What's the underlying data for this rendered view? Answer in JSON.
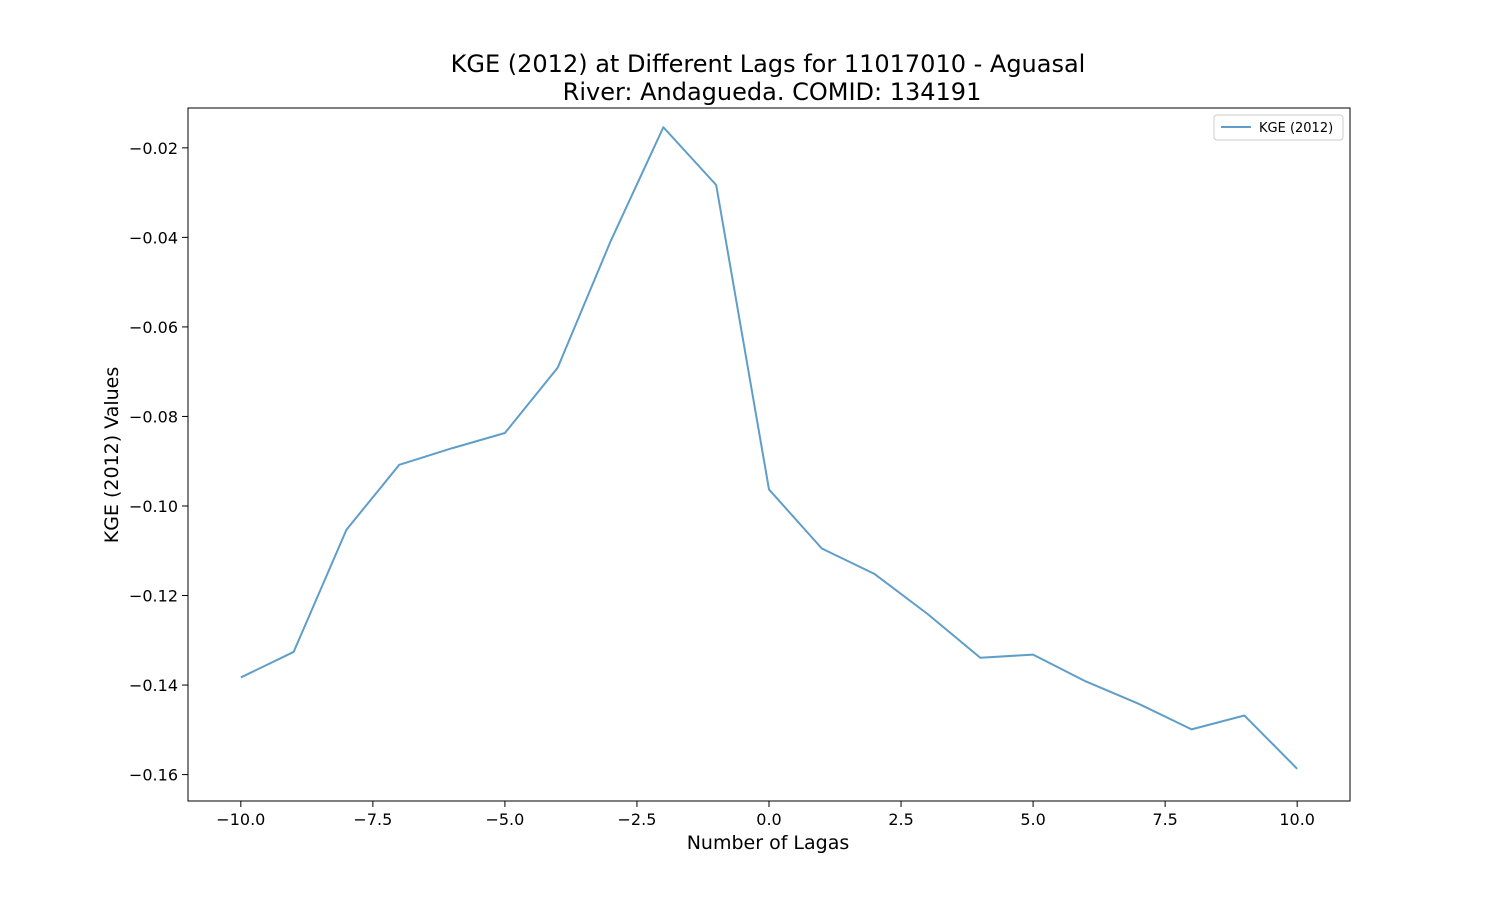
{
  "chart_data": {
    "type": "line",
    "title_line1": "KGE (2012) at Different Lags for 11017010 - Aguasal",
    "title_line2": "River: Andagueda. COMID: 134191",
    "xlabel": "Number of Lagas",
    "ylabel": "KGE (2012) Values",
    "xlim": [
      -11.0,
      11.0
    ],
    "ylim": [
      -0.1659,
      -0.0111
    ],
    "xticks": [
      {
        "value": -10.0,
        "label": "−10.0"
      },
      {
        "value": -7.5,
        "label": "−7.5"
      },
      {
        "value": -5.0,
        "label": "−5.0"
      },
      {
        "value": -2.5,
        "label": "−2.5"
      },
      {
        "value": 0.0,
        "label": "0.0"
      },
      {
        "value": 2.5,
        "label": "2.5"
      },
      {
        "value": 5.0,
        "label": "5.0"
      },
      {
        "value": 7.5,
        "label": "7.5"
      },
      {
        "value": 10.0,
        "label": "10.0"
      }
    ],
    "yticks": [
      {
        "value": -0.02,
        "label": "−0.02"
      },
      {
        "value": -0.04,
        "label": "−0.04"
      },
      {
        "value": -0.06,
        "label": "−0.06"
      },
      {
        "value": -0.08,
        "label": "−0.08"
      },
      {
        "value": -0.1,
        "label": "−0.10"
      },
      {
        "value": -0.12,
        "label": "−0.12"
      },
      {
        "value": -0.14,
        "label": "−0.14"
      },
      {
        "value": -0.16,
        "label": "−0.16"
      }
    ],
    "grid": false,
    "legend_position": "top-right",
    "series": [
      {
        "name": "KGE (2012)",
        "color": "#5f9ec9",
        "x": [
          -10,
          -9,
          -8,
          -7,
          -6,
          -5,
          -4,
          -3,
          -2,
          -1,
          0,
          1,
          2,
          3,
          4,
          5,
          6,
          7,
          8,
          9,
          10
        ],
        "y": [
          -0.1383,
          -0.1326,
          -0.1053,
          -0.0908,
          -0.0871,
          -0.0837,
          -0.0691,
          -0.0409,
          -0.0154,
          -0.0283,
          -0.0963,
          -0.1095,
          -0.1152,
          -0.1241,
          -0.1339,
          -0.1332,
          -0.1392,
          -0.1442,
          -0.1499,
          -0.1468,
          -0.1587
        ]
      }
    ]
  }
}
